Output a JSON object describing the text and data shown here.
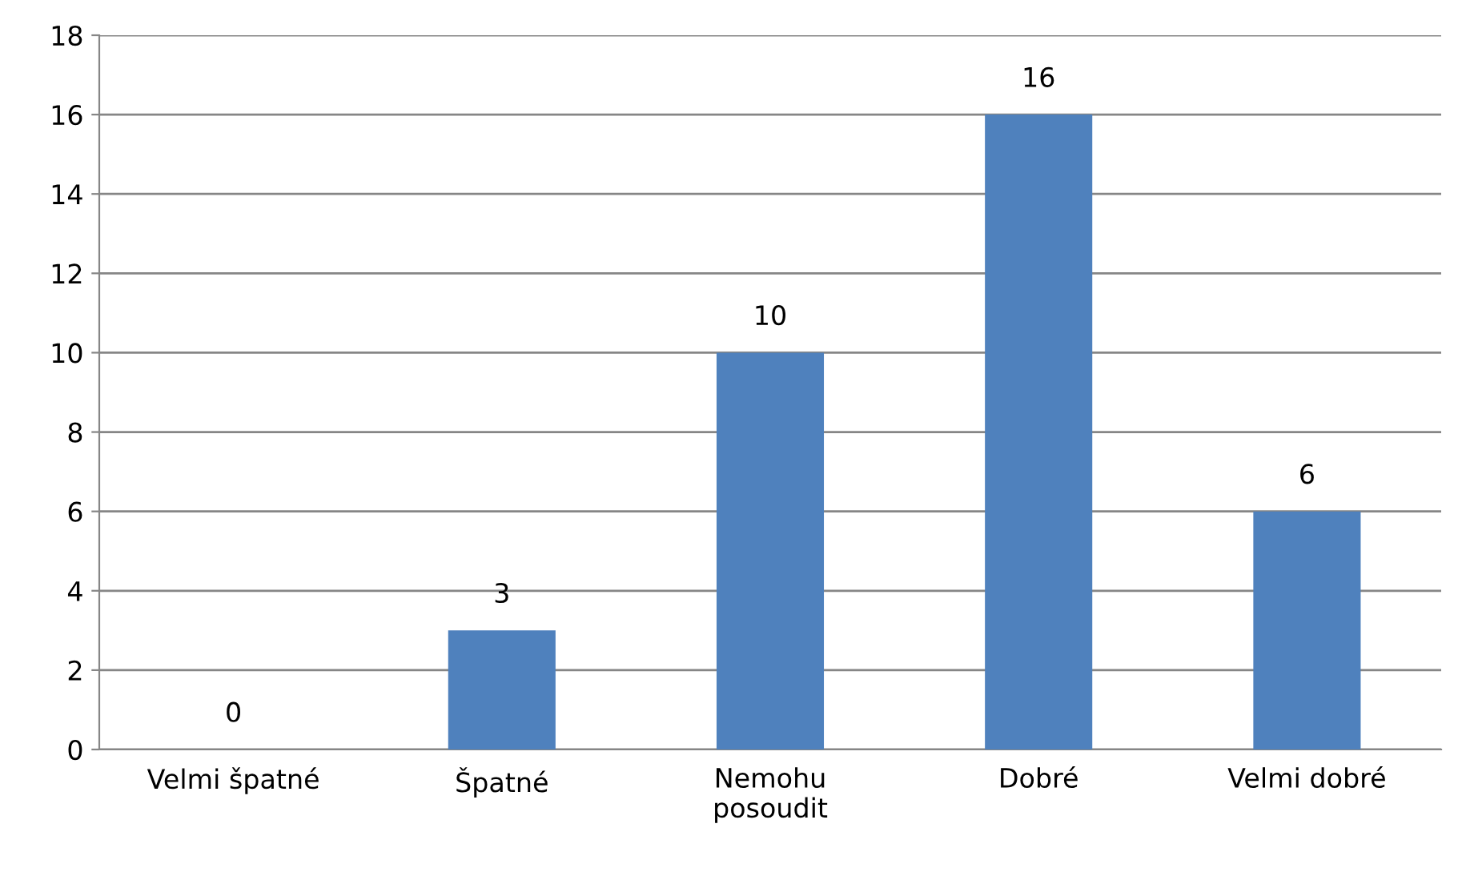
{
  "chart_data": {
    "type": "bar",
    "categories": [
      "Velmi špatné",
      "Špatné",
      "Nemohu posoudit",
      "Dobré",
      "Velmi dobré"
    ],
    "values": [
      0,
      3,
      10,
      16,
      6
    ],
    "color": "#4f81bd",
    "ylim": [
      0,
      18
    ],
    "yticks": [
      0,
      2,
      4,
      6,
      8,
      10,
      12,
      14,
      16,
      18
    ],
    "grid": "y",
    "data_labels": true,
    "legend": false
  }
}
